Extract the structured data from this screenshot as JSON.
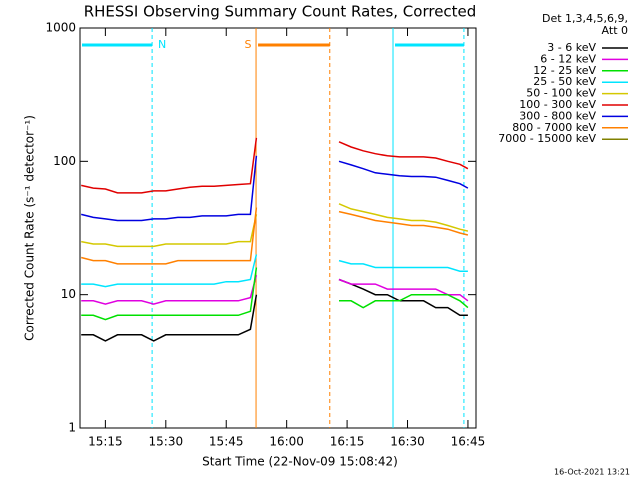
{
  "chart_data": {
    "type": "line",
    "title": "RHESSI Observing Summary Count Rates, Corrected",
    "x_label": "Start Time (22-Nov-09 15:08:42)",
    "y_label": "Corrected Count Rate (s⁻¹ detector⁻¹)",
    "legend_title": [
      "Det 1,3,4,5,6,9,",
      "Att 0"
    ],
    "footer": "16-Oct-2021 13:21",
    "log_y": true,
    "xlim": [
      8.7,
      107
    ],
    "ylim": [
      1,
      1000
    ],
    "xticks": [
      {
        "value": 15,
        "label": "15:15"
      },
      {
        "value": 30,
        "label": "15:30"
      },
      {
        "value": 45,
        "label": "15:45"
      },
      {
        "value": 60,
        "label": "16:00"
      },
      {
        "value": 75,
        "label": "16:15"
      },
      {
        "value": 90,
        "label": "16:30"
      },
      {
        "value": 105,
        "label": "16:45"
      }
    ],
    "yticks": [
      1,
      10,
      100,
      1000
    ],
    "intervals": [
      {
        "label": "N",
        "start": 8.7,
        "end": 26.6,
        "color": "#00e5ff"
      },
      {
        "label": "S",
        "start": 52.4,
        "end": 70.7,
        "color": "#ff8000"
      },
      {
        "start": 86.4,
        "end": 104,
        "color": "#00e5ff"
      }
    ],
    "x": [
      9,
      12,
      15,
      18,
      21,
      24,
      27,
      30,
      33,
      36,
      39,
      42,
      45,
      48,
      51,
      52.5,
      62,
      73,
      76,
      79,
      82,
      85,
      88,
      91,
      94,
      97,
      100,
      103,
      105
    ],
    "series": [
      {
        "name": "3 - 6 keV",
        "color": "#000000",
        "values": [
          5,
          5,
          4.5,
          5,
          5,
          5,
          4.5,
          5,
          5,
          5,
          5,
          5,
          5,
          5,
          5.5,
          10,
          null,
          13,
          12,
          11,
          10,
          10,
          9,
          9,
          9,
          8,
          8,
          7,
          7
        ]
      },
      {
        "name": "6 - 12 keV",
        "color": "#e000e0",
        "values": [
          9,
          9,
          8.5,
          9,
          9,
          9,
          8.5,
          9,
          9,
          9,
          9,
          9,
          9,
          9,
          9.5,
          14,
          null,
          13,
          12,
          12,
          12,
          11,
          11,
          11,
          11,
          11,
          10,
          10,
          9
        ]
      },
      {
        "name": "12 - 25 keV",
        "color": "#00e000",
        "values": [
          7,
          7,
          6.5,
          7,
          7,
          7,
          7,
          7,
          7,
          7,
          7,
          7,
          7,
          7,
          7.5,
          16,
          null,
          9,
          9,
          8,
          9,
          9,
          9,
          10,
          10,
          10,
          10,
          9,
          8
        ]
      },
      {
        "name": "25 - 50 keV",
        "color": "#00e5ff",
        "values": [
          12,
          12,
          11.5,
          12,
          12,
          12,
          12,
          12,
          12,
          12,
          12,
          12,
          12.5,
          12.5,
          13,
          20,
          null,
          18,
          17,
          17,
          16,
          16,
          16,
          16,
          16,
          16,
          16,
          15,
          15
        ]
      },
      {
        "name": "50 - 100 keV",
        "color": "#d4c800",
        "values": [
          25,
          24,
          24,
          23,
          23,
          23,
          23,
          24,
          24,
          24,
          24,
          24,
          24,
          25,
          25,
          40,
          null,
          48,
          44,
          42,
          40,
          38,
          37,
          36,
          36,
          35,
          33,
          31,
          30
        ]
      },
      {
        "name": "100 - 300 keV",
        "color": "#e00000",
        "values": [
          66,
          63,
          62,
          58,
          58,
          58,
          60,
          60,
          62,
          64,
          65,
          65,
          66,
          67,
          68,
          150,
          null,
          140,
          128,
          120,
          114,
          110,
          108,
          108,
          108,
          106,
          100,
          95,
          88
        ]
      },
      {
        "name": "300 - 800 keV",
        "color": "#0000e0",
        "values": [
          40,
          38,
          37,
          36,
          36,
          36,
          37,
          37,
          38,
          38,
          39,
          39,
          39,
          40,
          40,
          110,
          null,
          100,
          94,
          88,
          82,
          80,
          78,
          77,
          77,
          76,
          72,
          68,
          63
        ]
      },
      {
        "name": "800 - 7000 keV",
        "color": "#ff8000",
        "values": [
          19,
          18,
          18,
          17,
          17,
          17,
          17,
          17,
          18,
          18,
          18,
          18,
          18,
          18,
          18,
          45,
          null,
          42,
          40,
          38,
          36,
          35,
          34,
          33,
          33,
          32,
          31,
          29,
          28
        ]
      },
      {
        "name": "7000 - 15000 keV",
        "color": "#808000",
        "values": [
          null,
          null,
          null,
          null,
          null,
          null,
          null,
          null,
          null,
          null,
          null,
          null,
          null,
          null,
          null,
          null,
          null,
          null,
          null,
          null,
          null,
          null,
          null,
          null,
          null,
          null,
          null,
          null,
          null
        ]
      }
    ]
  }
}
